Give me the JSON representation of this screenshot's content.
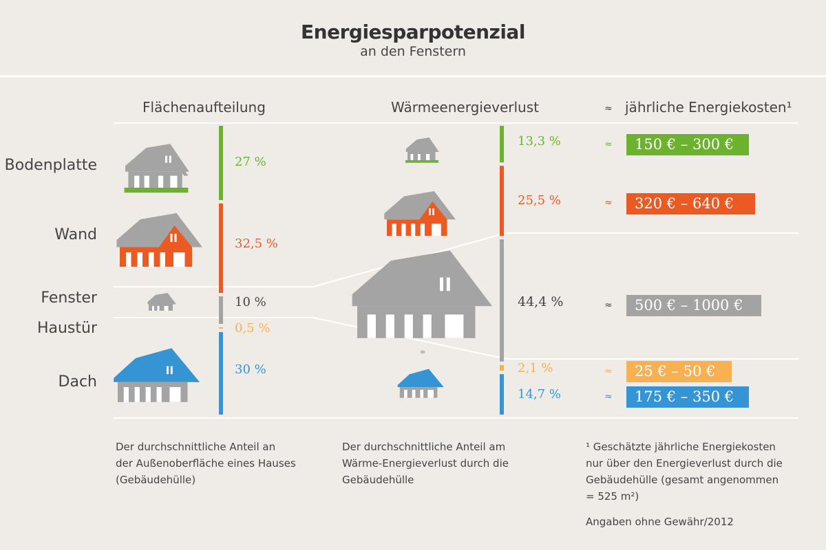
{
  "title": "Energiesparpotenzial",
  "subtitle": "an den Fenstern",
  "columns": {
    "area": "Flächenaufteilung",
    "heat": "Wärmeenergieverlust",
    "approx": "≈",
    "cost": "jährliche Energiekosten¹"
  },
  "colors": {
    "Bodenplatte": "#6cb22e",
    "Wand": "#ec5a24",
    "Fenster": "#a3a3a3",
    "Haustür": "#f7b052",
    "Dach": "#3594d4",
    "house_grey": "#a4a4a4",
    "background": "#efece8"
  },
  "categories": [
    {
      "name": "Bodenplatte",
      "area_pct": 27,
      "area_label": "27 %",
      "heat_pct": 13.3,
      "heat_label": "13,3 %",
      "cost_label": "150 € – 300 €",
      "cost_approx": "≈",
      "color": "#6cb22e"
    },
    {
      "name": "Wand",
      "area_pct": 32.5,
      "area_label": "32,5 %",
      "heat_pct": 25.5,
      "heat_label": "25,5 %",
      "cost_label": "320 € – 640 €",
      "cost_approx": "≈",
      "color": "#ec5a24"
    },
    {
      "name": "Fenster",
      "area_pct": 10,
      "area_label": "10 %",
      "heat_pct": 44.4,
      "heat_label": "44,4 %",
      "cost_label": "500 € – 1000 €",
      "cost_approx": "≈",
      "color": "#a3a3a3"
    },
    {
      "name": "Haustür",
      "area_pct": 0.5,
      "area_label": "0,5 %",
      "heat_pct": 2.1,
      "heat_label": "2,1 %",
      "cost_label": "25 € – 50 €",
      "cost_approx": "≈",
      "color": "#f7b052"
    },
    {
      "name": "Dach",
      "area_pct": 30,
      "area_label": "30 %",
      "heat_pct": 14.7,
      "heat_label": "14,7 %",
      "cost_label": "175 € – 350 €",
      "cost_approx": "≈",
      "color": "#3594d4"
    }
  ],
  "chart_data": {
    "type": "bar",
    "title": "Energiesparpotenzial",
    "subtitle": "an den Fenstern",
    "categories": [
      "Bodenplatte",
      "Wand",
      "Fenster",
      "Haustür",
      "Dach"
    ],
    "series": [
      {
        "name": "Flächenaufteilung",
        "unit": "%",
        "values": [
          27,
          32.5,
          10,
          0.5,
          30
        ]
      },
      {
        "name": "Wärmeenergieverlust",
        "unit": "%",
        "values": [
          13.3,
          25.5,
          44.4,
          2.1,
          14.7
        ]
      }
    ],
    "annual_costs_eur": [
      [
        150,
        300
      ],
      [
        320,
        640
      ],
      [
        500,
        1000
      ],
      [
        25,
        50
      ],
      [
        175,
        350
      ]
    ]
  },
  "notes": {
    "area_lines": [
      "Der durchschnittliche Anteil an",
      "der Außenoberfläche eines Hauses",
      "(Gebäudehülle)"
    ],
    "heat_lines": [
      "Der durchschnittliche Anteil am",
      "Wärme-Energieverlust durch die",
      "Gebäudehülle"
    ],
    "cost_lines": [
      "¹ Geschätzte jährliche Energiekosten",
      "nur über den Energieverlust durch die",
      "Gebäudehülle (gesamt angenommen",
      "= 525 m²)"
    ],
    "source": "Angaben ohne Gewähr/2012"
  }
}
